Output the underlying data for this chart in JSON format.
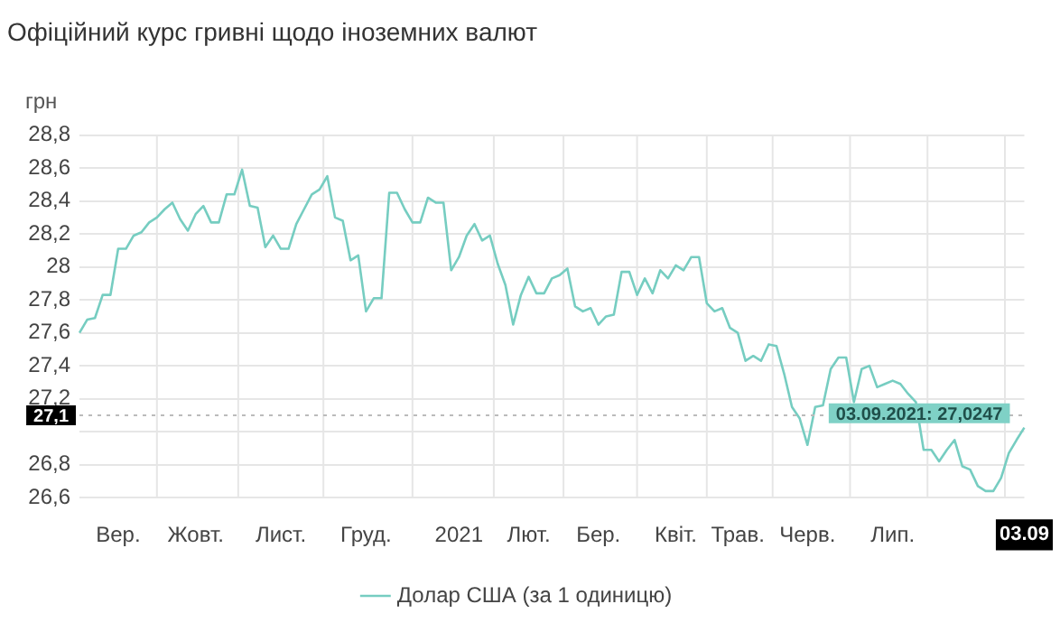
{
  "chart_data": {
    "type": "line",
    "title": "Офіційний курс гривні щодо іноземних валют",
    "ylabel": "грн",
    "categories": [
      null,
      null,
      null,
      null,
      null,
      "Вер.",
      null,
      null,
      null,
      null,
      null,
      null,
      null,
      null,
      null,
      "Жовт.",
      null,
      null,
      null,
      null,
      null,
      null,
      null,
      null,
      null,
      null,
      "Лист.",
      null,
      null,
      null,
      null,
      null,
      null,
      null,
      null,
      null,
      null,
      "Груд.",
      null,
      null,
      null,
      null,
      null,
      null,
      null,
      null,
      null,
      null,
      null,
      "2021",
      null,
      null,
      null,
      null,
      null,
      null,
      null,
      null,
      "Лют.",
      null,
      null,
      null,
      null,
      null,
      null,
      null,
      null,
      "Бер.",
      null,
      null,
      null,
      null,
      null,
      null,
      null,
      null,
      null,
      "Квіт.",
      null,
      null,
      null,
      null,
      null,
      null,
      null,
      "Трав.",
      null,
      null,
      null,
      null,
      null,
      null,
      null,
      null,
      "Черв.",
      null,
      null,
      null,
      null,
      null,
      null,
      null,
      null,
      null,
      null,
      "Лип.",
      null,
      null,
      null,
      null,
      null,
      null,
      null,
      null,
      null,
      null,
      null,
      null,
      null,
      null,
      null,
      null,
      "03.09"
    ],
    "series": [
      {
        "name": "Долар США (за 1 одиницю)",
        "color": "#76cdc1",
        "values": [
          27.6,
          27.68,
          27.69,
          27.83,
          27.83,
          28.11,
          28.11,
          28.19,
          28.21,
          28.27,
          28.3,
          28.35,
          28.39,
          28.29,
          28.22,
          28.32,
          28.37,
          28.27,
          28.27,
          28.44,
          28.44,
          28.59,
          28.37,
          28.36,
          28.12,
          28.19,
          28.11,
          28.11,
          28.26,
          28.35,
          28.44,
          28.47,
          28.55,
          28.3,
          28.28,
          28.04,
          28.07,
          27.73,
          27.81,
          27.81,
          28.45,
          28.45,
          28.35,
          28.27,
          28.27,
          28.42,
          28.39,
          28.39,
          27.98,
          28.06,
          28.19,
          28.26,
          28.16,
          28.19,
          28.02,
          27.89,
          27.65,
          27.83,
          27.94,
          27.84,
          27.84,
          27.93,
          27.95,
          27.99,
          27.76,
          27.73,
          27.75,
          27.65,
          27.7,
          27.71,
          27.97,
          27.97,
          27.83,
          27.93,
          27.84,
          27.98,
          27.93,
          28.01,
          27.98,
          28.06,
          28.06,
          27.78,
          27.73,
          27.75,
          27.63,
          27.6,
          27.43,
          27.46,
          27.43,
          27.53,
          27.52,
          27.35,
          27.15,
          27.08,
          26.92,
          27.15,
          27.16,
          27.38,
          27.45,
          27.45,
          27.18,
          27.38,
          27.4,
          27.27,
          27.29,
          27.31,
          27.29,
          27.23,
          27.18,
          26.89,
          26.89,
          26.82,
          26.89,
          26.95,
          26.79,
          26.77,
          26.67,
          26.64,
          26.64,
          26.72,
          26.87,
          26.95,
          27.0247
        ]
      }
    ],
    "ylim": [
      26.6,
      28.8
    ],
    "yticks": [
      {
        "value": 26.6,
        "label": "26,6"
      },
      {
        "value": 26.8,
        "label": "26,8"
      },
      {
        "value": 27,
        "label": null
      },
      {
        "value": 27.2,
        "label": "27,2"
      },
      {
        "value": 27.4,
        "label": "27,4"
      },
      {
        "value": 27.6,
        "label": "27,6"
      },
      {
        "value": 27.8,
        "label": "27,8"
      },
      28,
      {
        "value": 28.2,
        "label": "28,2"
      },
      {
        "value": 28.4,
        "label": "28,4"
      },
      {
        "value": 28.6,
        "label": "28,6"
      },
      {
        "value": 28.8,
        "label": "28,8"
      }
    ],
    "ref_lines": [
      {
        "axis": "y",
        "value": 27.1,
        "label": "27,1",
        "line_style": "dotted",
        "color": "#bbbbbb"
      }
    ],
    "annotations": [
      {
        "text": "03.09.2021: 27,0247",
        "x": "03.09",
        "y": 27.0247
      }
    ],
    "grid": true,
    "legend": "bottom",
    "marker": "none",
    "line_style": "solid"
  }
}
